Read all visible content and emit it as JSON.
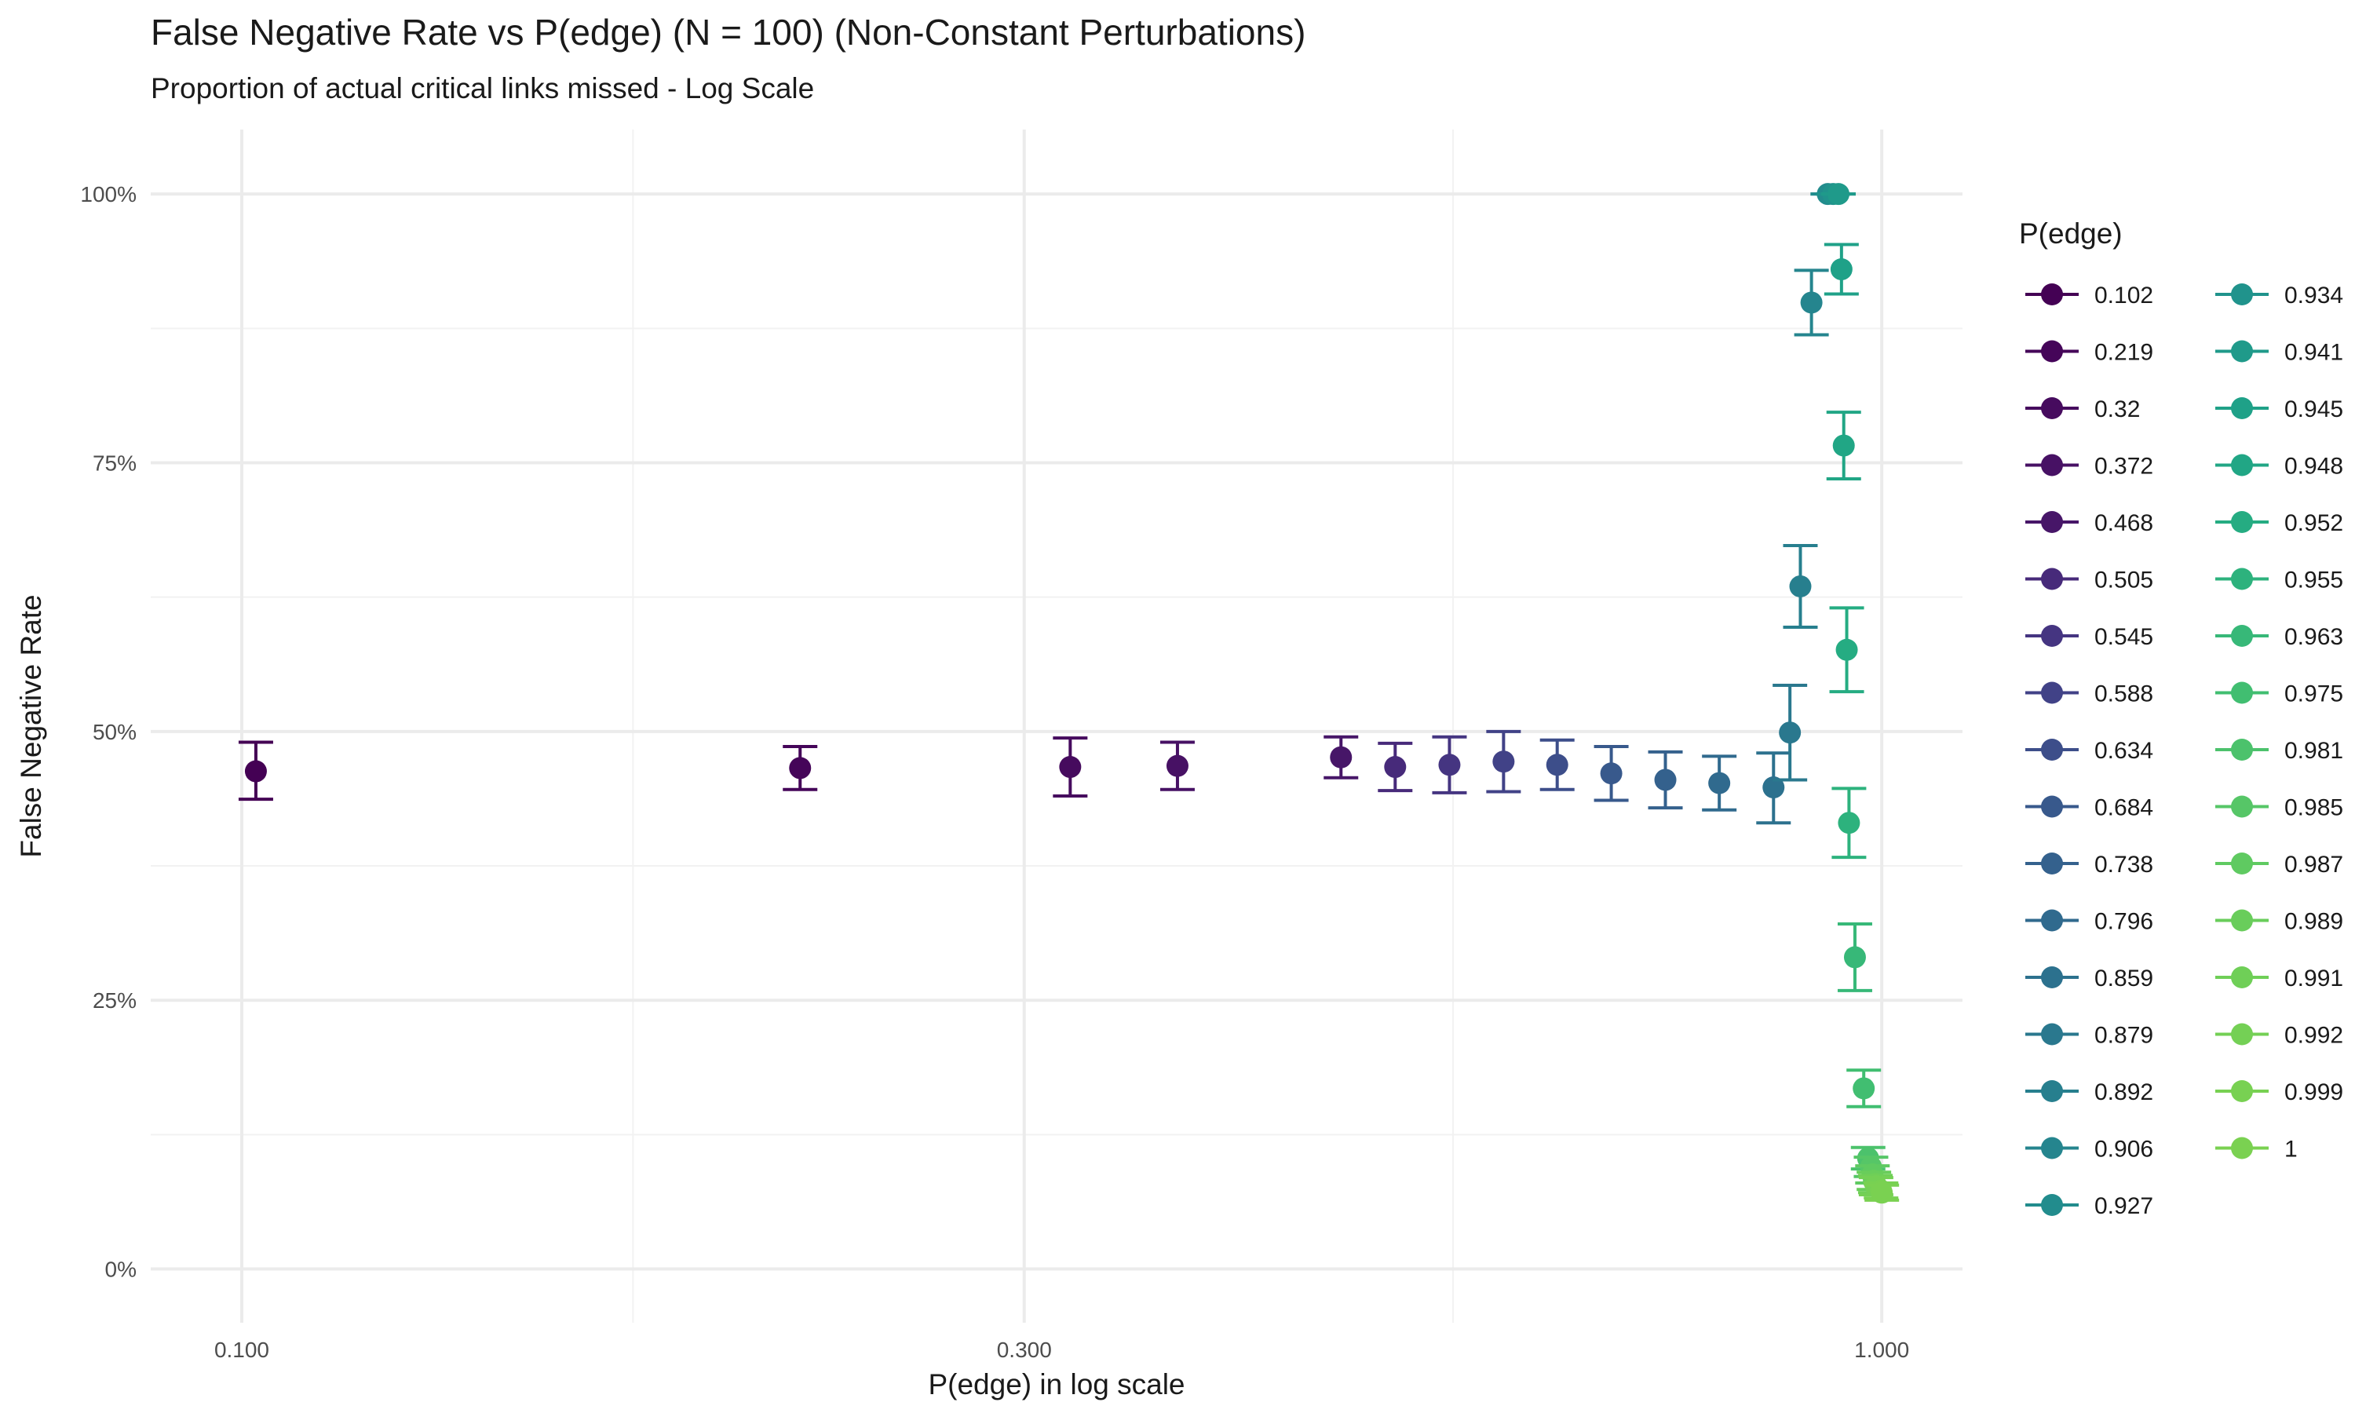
{
  "chart_data": {
    "type": "scatter",
    "title": "False Negative Rate vs P(edge) (N = 100) (Non-Constant Perturbations)",
    "subtitle": "Proportion of actual critical links missed - Log Scale",
    "xlabel": "P(edge) in log scale",
    "ylabel": "False Negative Rate",
    "x_scale": "log10",
    "xlim": [
      0.088,
      1.12
    ],
    "ylim": [
      -0.05,
      1.06
    ],
    "x_ticks": [
      0.1,
      0.3,
      1.0
    ],
    "x_tick_labels": [
      "0.100",
      "0.300",
      "1.000"
    ],
    "y_ticks": [
      0,
      0.25,
      0.5,
      0.75,
      1.0
    ],
    "y_tick_labels": [
      "0%",
      "25%",
      "50%",
      "75%",
      "100%"
    ],
    "grid": true,
    "legend_title": "P(edge)",
    "legend_position": "right",
    "error_bars": true,
    "points": [
      {
        "label": "0.102",
        "x": 0.102,
        "y": 0.463,
        "lo": 0.437,
        "hi": 0.49,
        "color": "#440154"
      },
      {
        "label": "0.219",
        "x": 0.219,
        "y": 0.466,
        "lo": 0.446,
        "hi": 0.486,
        "color": "#450559"
      },
      {
        "label": "0.32",
        "x": 0.32,
        "y": 0.467,
        "lo": 0.44,
        "hi": 0.494,
        "color": "#460B5E"
      },
      {
        "label": "0.372",
        "x": 0.372,
        "y": 0.468,
        "lo": 0.446,
        "hi": 0.49,
        "color": "#471164"
      },
      {
        "label": "0.468",
        "x": 0.468,
        "y": 0.476,
        "lo": 0.457,
        "hi": 0.495,
        "color": "#471668"
      },
      {
        "label": "0.505",
        "x": 0.505,
        "y": 0.467,
        "lo": 0.445,
        "hi": 0.489,
        "color": "#472A7A"
      },
      {
        "label": "0.545",
        "x": 0.545,
        "y": 0.469,
        "lo": 0.443,
        "hi": 0.495,
        "color": "#453581"
      },
      {
        "label": "0.588",
        "x": 0.588,
        "y": 0.472,
        "lo": 0.444,
        "hi": 0.5,
        "color": "#414287"
      },
      {
        "label": "0.634",
        "x": 0.634,
        "y": 0.469,
        "lo": 0.446,
        "hi": 0.492,
        "color": "#3D4E8A"
      },
      {
        "label": "0.684",
        "x": 0.684,
        "y": 0.461,
        "lo": 0.436,
        "hi": 0.486,
        "color": "#38598C"
      },
      {
        "label": "0.738",
        "x": 0.738,
        "y": 0.455,
        "lo": 0.429,
        "hi": 0.481,
        "color": "#34618D"
      },
      {
        "label": "0.796",
        "x": 0.796,
        "y": 0.452,
        "lo": 0.427,
        "hi": 0.477,
        "color": "#306A8E"
      },
      {
        "label": "0.859",
        "x": 0.859,
        "y": 0.448,
        "lo": 0.415,
        "hi": 0.48,
        "color": "#2C718E"
      },
      {
        "label": "0.879",
        "x": 0.879,
        "y": 0.499,
        "lo": 0.455,
        "hi": 0.543,
        "color": "#2A788E"
      },
      {
        "label": "0.892",
        "x": 0.892,
        "y": 0.635,
        "lo": 0.597,
        "hi": 0.673,
        "color": "#277F8E"
      },
      {
        "label": "0.906",
        "x": 0.906,
        "y": 0.899,
        "lo": 0.869,
        "hi": 0.929,
        "color": "#25858E"
      },
      {
        "label": "0.927",
        "x": 0.927,
        "y": 1.0,
        "lo": 1.0,
        "hi": 1.0,
        "color": "#228C8D"
      },
      {
        "label": "0.934",
        "x": 0.934,
        "y": 1.0,
        "lo": 1.0,
        "hi": 1.0,
        "color": "#20938C"
      },
      {
        "label": "0.941",
        "x": 0.941,
        "y": 1.0,
        "lo": 1.0,
        "hi": 1.0,
        "color": "#1F9A8A"
      },
      {
        "label": "0.945",
        "x": 0.945,
        "y": 0.93,
        "lo": 0.907,
        "hi": 0.953,
        "color": "#1FA188"
      },
      {
        "label": "0.948",
        "x": 0.948,
        "y": 0.766,
        "lo": 0.735,
        "hi": 0.797,
        "color": "#21A685"
      },
      {
        "label": "0.952",
        "x": 0.952,
        "y": 0.576,
        "lo": 0.537,
        "hi": 0.615,
        "color": "#25AC82"
      },
      {
        "label": "0.955",
        "x": 0.955,
        "y": 0.415,
        "lo": 0.383,
        "hi": 0.447,
        "color": "#2DB27D"
      },
      {
        "label": "0.963",
        "x": 0.963,
        "y": 0.29,
        "lo": 0.259,
        "hi": 0.321,
        "color": "#37B878"
      },
      {
        "label": "0.975",
        "x": 0.975,
        "y": 0.168,
        "lo": 0.151,
        "hi": 0.185,
        "color": "#41BE71"
      },
      {
        "label": "0.981",
        "x": 0.981,
        "y": 0.103,
        "lo": 0.093,
        "hi": 0.113,
        "color": "#4CC26C"
      },
      {
        "label": "0.985",
        "x": 0.985,
        "y": 0.095,
        "lo": 0.086,
        "hi": 0.104,
        "color": "#56C667"
      },
      {
        "label": "0.987",
        "x": 0.987,
        "y": 0.088,
        "lo": 0.08,
        "hi": 0.096,
        "color": "#5FCA61"
      },
      {
        "label": "0.989",
        "x": 0.989,
        "y": 0.082,
        "lo": 0.074,
        "hi": 0.09,
        "color": "#69CD5B"
      },
      {
        "label": "0.991",
        "x": 0.991,
        "y": 0.079,
        "lo": 0.071,
        "hi": 0.087,
        "color": "#6FCF57"
      },
      {
        "label": "0.992",
        "x": 0.992,
        "y": 0.077,
        "lo": 0.069,
        "hi": 0.085,
        "color": "#74D055"
      },
      {
        "label": "0.999",
        "x": 0.999,
        "y": 0.073,
        "lo": 0.066,
        "hi": 0.08,
        "color": "#78D152"
      },
      {
        "label": "1",
        "x": 1.0,
        "y": 0.071,
        "lo": 0.064,
        "hi": 0.078,
        "color": "#7AD151"
      }
    ]
  }
}
